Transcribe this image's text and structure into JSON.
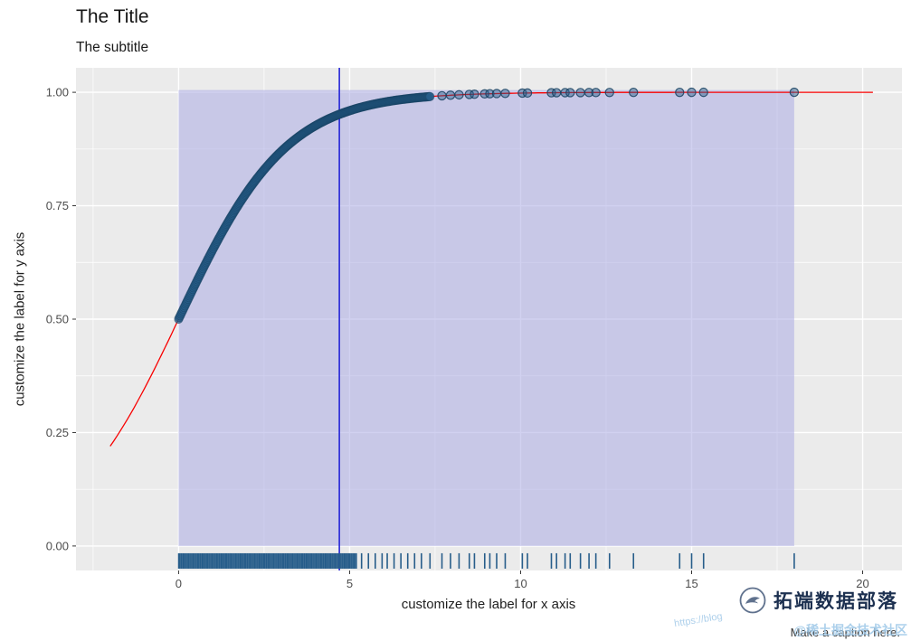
{
  "chart_data": {
    "type": "scatter",
    "title": "The Title",
    "subtitle": "The subtitle",
    "xlabel": "customize the label for x axis",
    "ylabel": "customize the label for y axis",
    "caption": "Make a caption here.",
    "axes": {
      "xlim": [
        -3.0,
        21.15
      ],
      "ylim": [
        -0.054,
        1.054
      ],
      "x_ticks": [
        {
          "value": 0,
          "label": "0"
        },
        {
          "value": 5,
          "label": "5"
        },
        {
          "value": 10,
          "label": "10"
        },
        {
          "value": 15,
          "label": "15"
        },
        {
          "value": 20,
          "label": "20"
        }
      ],
      "y_ticks": [
        {
          "value": 0,
          "label": "0.00"
        },
        {
          "value": 0.25,
          "label": "0.25"
        },
        {
          "value": 0.5,
          "label": "0.50"
        },
        {
          "value": 0.75,
          "label": "0.75"
        },
        {
          "value": 1,
          "label": "1.00"
        }
      ],
      "x_minor": [
        -2.5,
        2.5,
        7.5,
        12.5,
        17.5
      ],
      "y_minor": [
        0.125,
        0.375,
        0.625,
        0.875
      ],
      "grid": true,
      "legend": "none"
    },
    "curve": {
      "model": "logistic",
      "k": 0.633,
      "x_from": -2.0,
      "x_to": 20.3,
      "color": "#F80000",
      "description": "red fitted curve y=1/(1+exp(-0.633x)); y(-2)=0.22, y(0)=0.50, y(4.7)=0.95, plateaus at 1.0"
    },
    "vline": {
      "x": 4.7,
      "color": "#2424D8"
    },
    "annotation_rect": {
      "xmin": 0,
      "xmax": 18,
      "ymin": 0,
      "ymax": 1.005,
      "fill": "#ABABE4",
      "opacity": 0.55
    },
    "points": {
      "color": "#275D8A",
      "dense_band": {
        "x_from": 0,
        "x_to": 7.35,
        "count": 320
      },
      "single_x": [
        7.7,
        7.95,
        8.2,
        8.5,
        8.65,
        8.95,
        9.1,
        9.3,
        9.55,
        10.05,
        10.2,
        10.9,
        11.05,
        11.3,
        11.45,
        11.75,
        12.0,
        12.2,
        12.6,
        13.3,
        14.65,
        15.0,
        15.35,
        18.0
      ]
    },
    "rug": {
      "y_top": -0.016,
      "y_bottom": -0.05,
      "dense_band": {
        "x_from": 0,
        "x_to": 5.2,
        "count": 160
      },
      "single_x": [
        5.35,
        5.55,
        5.75,
        5.95,
        6.1,
        6.3,
        6.5,
        6.7,
        6.9,
        7.1,
        7.35,
        7.7,
        7.95,
        8.2,
        8.5,
        8.65,
        8.95,
        9.1,
        9.3,
        9.55,
        10.05,
        10.2,
        10.9,
        11.05,
        11.3,
        11.45,
        11.75,
        12.0,
        12.2,
        12.6,
        13.3,
        14.65,
        15.0,
        15.35,
        18.0
      ]
    },
    "style": {
      "panel_bg": "#EBEBEB",
      "grid_color": "#FFFFFF",
      "tick_label_color": "#4D4D4D",
      "tick_mark_color": "#333333",
      "point_stroke": "#16405F"
    }
  },
  "watermark": {
    "brand": "拓端数据部落",
    "url": "https://blog",
    "community": "@稀土掘金技术社区"
  }
}
